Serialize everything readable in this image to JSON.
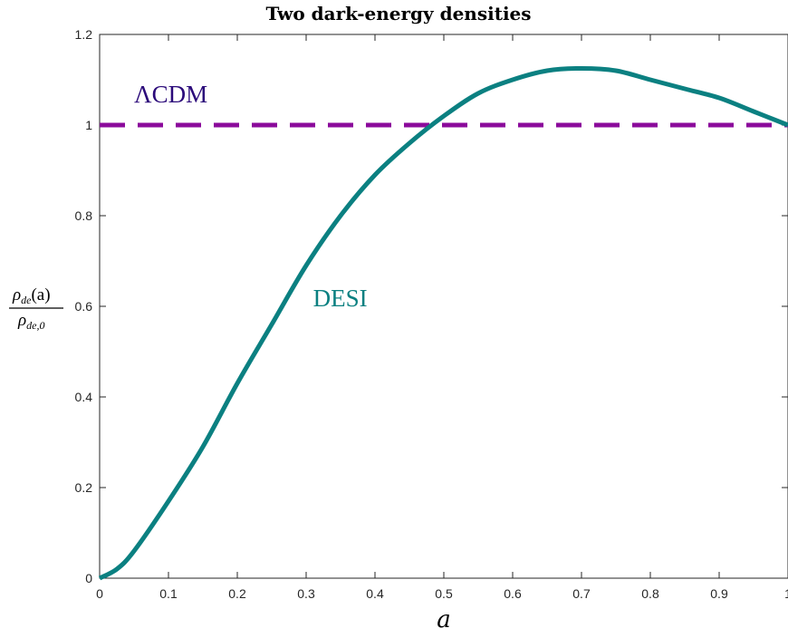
{
  "chart_data": {
    "type": "line",
    "title": "Two dark-energy densities",
    "xlabel": "a",
    "ylabel": {
      "numerator": "ρ",
      "numerator_sub": "de",
      "numerator_arg": "(a)",
      "denominator": "ρ",
      "denominator_sub": "de,0"
    },
    "xlim": [
      0,
      1
    ],
    "ylim": [
      0,
      1.2
    ],
    "xticks": [
      0,
      0.1,
      0.2,
      0.3,
      0.4,
      0.5,
      0.6,
      0.7,
      0.8,
      0.9,
      1
    ],
    "xtick_labels": [
      "0",
      "0.1",
      "0.2",
      "0.3",
      "0.4",
      "0.5",
      "0.6",
      "0.7",
      "0.8",
      "0.9",
      "1"
    ],
    "yticks": [
      0,
      0.2,
      0.4,
      0.6,
      0.8,
      1,
      1.2
    ],
    "ytick_labels": [
      "0",
      "0.2",
      "0.4",
      "0.6",
      "0.8",
      "1",
      "1.2"
    ],
    "grid": false,
    "series": [
      {
        "name": "ΛCDM",
        "color": "#8b0a9b",
        "style": "dashed",
        "x": [
          0,
          1
        ],
        "y": [
          1,
          1
        ]
      },
      {
        "name": "DESI",
        "color": "#0b8081",
        "style": "solid",
        "x": [
          0,
          0.025,
          0.05,
          0.1,
          0.15,
          0.2,
          0.25,
          0.3,
          0.35,
          0.4,
          0.45,
          0.5,
          0.55,
          0.6,
          0.65,
          0.7,
          0.75,
          0.8,
          0.85,
          0.9,
          0.95,
          1.0
        ],
        "y": [
          0,
          0.02,
          0.06,
          0.17,
          0.29,
          0.43,
          0.56,
          0.69,
          0.8,
          0.89,
          0.96,
          1.02,
          1.07,
          1.1,
          1.12,
          1.125,
          1.12,
          1.1,
          1.08,
          1.06,
          1.03,
          1.0
        ]
      }
    ],
    "annotations": [
      {
        "text": "ΛCDM",
        "x": 0.05,
        "y": 1.05,
        "color": "#2b0a7a"
      },
      {
        "text": "DESI",
        "x": 0.31,
        "y": 0.6,
        "color": "#0b8081"
      }
    ]
  }
}
